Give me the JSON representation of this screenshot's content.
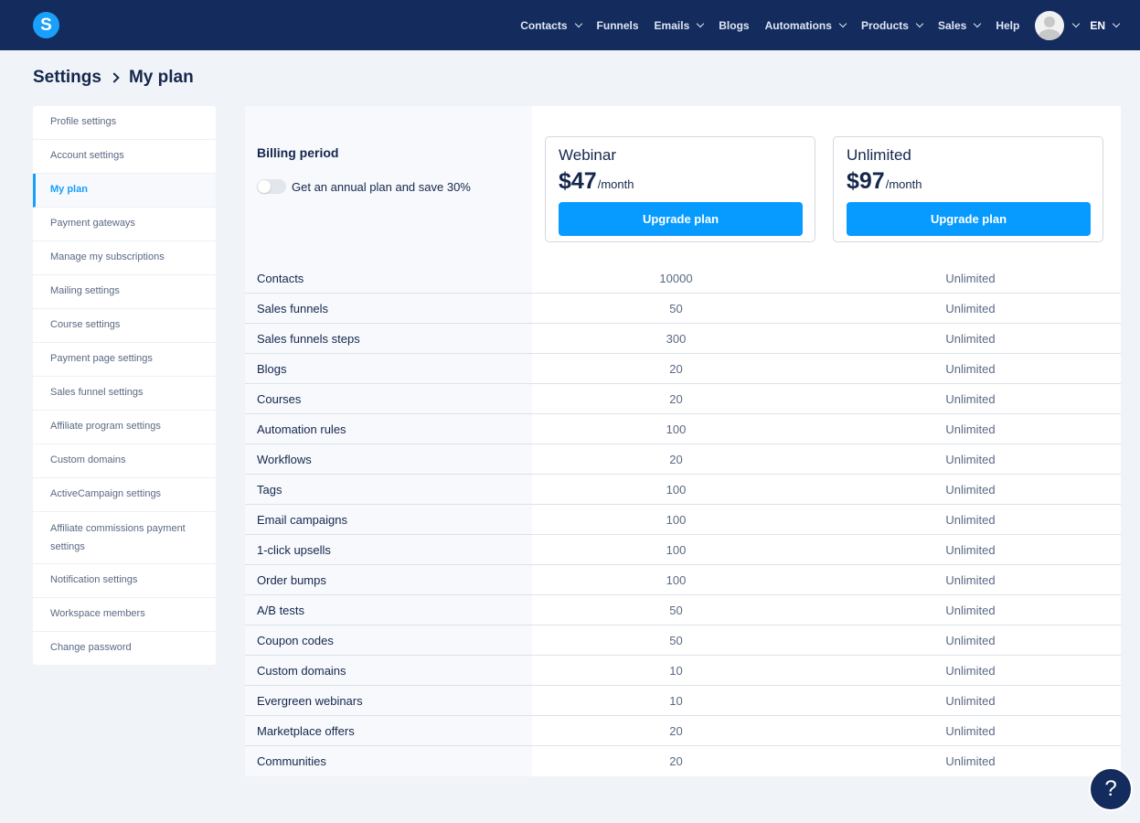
{
  "brand": {
    "logo_letter": "S",
    "accent": "#18a0fb",
    "nav_bg": "#142b5e"
  },
  "nav": {
    "items": [
      {
        "label": "Contacts",
        "dropdown": true
      },
      {
        "label": "Funnels",
        "dropdown": false
      },
      {
        "label": "Emails",
        "dropdown": true
      },
      {
        "label": "Blogs",
        "dropdown": false
      },
      {
        "label": "Automations",
        "dropdown": true
      },
      {
        "label": "Products",
        "dropdown": true
      },
      {
        "label": "Sales",
        "dropdown": true
      },
      {
        "label": "Help",
        "dropdown": false
      }
    ],
    "language": "EN"
  },
  "breadcrumb": {
    "parent": "Settings",
    "current": "My plan"
  },
  "sidebar": {
    "items": [
      {
        "label": "Profile settings"
      },
      {
        "label": "Account settings"
      },
      {
        "label": "My plan",
        "active": true
      },
      {
        "label": "Payment gateways"
      },
      {
        "label": "Manage my subscriptions"
      },
      {
        "label": "Mailing settings"
      },
      {
        "label": "Course settings"
      },
      {
        "label": "Payment page settings"
      },
      {
        "label": "Sales funnel settings"
      },
      {
        "label": "Affiliate program settings"
      },
      {
        "label": "Custom domains"
      },
      {
        "label": "ActiveCampaign settings"
      },
      {
        "label": "Affiliate commissions payment settings"
      },
      {
        "label": "Notification settings"
      },
      {
        "label": "Workspace members"
      },
      {
        "label": "Change password"
      }
    ]
  },
  "billing": {
    "title": "Billing period",
    "toggle_label": "Get an annual plan and save 30%",
    "annual_enabled": false
  },
  "plans": [
    {
      "name": "Webinar",
      "price": "$47",
      "period": "/month",
      "button": "Upgrade plan"
    },
    {
      "name": "Unlimited",
      "price": "$97",
      "period": "/month",
      "button": "Upgrade plan"
    }
  ],
  "features": [
    {
      "name": "Contacts",
      "webinar": "10000",
      "unlimited": "Unlimited"
    },
    {
      "name": "Sales funnels",
      "webinar": "50",
      "unlimited": "Unlimited"
    },
    {
      "name": "Sales funnels steps",
      "webinar": "300",
      "unlimited": "Unlimited"
    },
    {
      "name": "Blogs",
      "webinar": "20",
      "unlimited": "Unlimited"
    },
    {
      "name": "Courses",
      "webinar": "20",
      "unlimited": "Unlimited"
    },
    {
      "name": "Automation rules",
      "webinar": "100",
      "unlimited": "Unlimited"
    },
    {
      "name": "Workflows",
      "webinar": "20",
      "unlimited": "Unlimited"
    },
    {
      "name": "Tags",
      "webinar": "100",
      "unlimited": "Unlimited"
    },
    {
      "name": "Email campaigns",
      "webinar": "100",
      "unlimited": "Unlimited"
    },
    {
      "name": "1-click upsells",
      "webinar": "100",
      "unlimited": "Unlimited"
    },
    {
      "name": "Order bumps",
      "webinar": "100",
      "unlimited": "Unlimited"
    },
    {
      "name": "A/B tests",
      "webinar": "50",
      "unlimited": "Unlimited"
    },
    {
      "name": "Coupon codes",
      "webinar": "50",
      "unlimited": "Unlimited"
    },
    {
      "name": "Custom domains",
      "webinar": "10",
      "unlimited": "Unlimited"
    },
    {
      "name": "Evergreen webinars",
      "webinar": "10",
      "unlimited": "Unlimited"
    },
    {
      "name": "Marketplace offers",
      "webinar": "20",
      "unlimited": "Unlimited"
    },
    {
      "name": "Communities",
      "webinar": "20",
      "unlimited": "Unlimited"
    }
  ],
  "help_button": {
    "icon": "question-mark-icon",
    "label": "?"
  }
}
